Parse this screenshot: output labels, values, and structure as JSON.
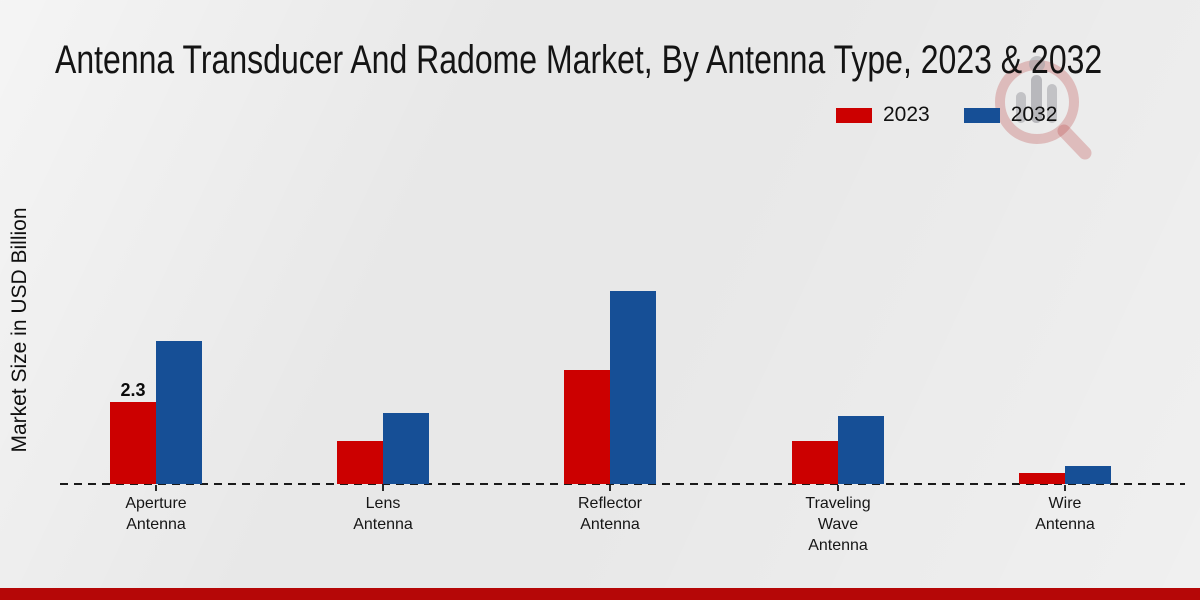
{
  "page": {
    "background_color": "#e8e8e8",
    "bottom_band_color": "#b50707",
    "watermark_name": "market-research-magnifier-logo"
  },
  "chart_data": {
    "type": "bar",
    "title": "Antenna Transducer And Radome Market, By Antenna Type, 2023 & 2032",
    "ylabel": "Market Size in USD Billion",
    "xlabel": "",
    "categories": [
      "Aperture Antenna",
      "Lens Antenna",
      "Reflector Antenna",
      "Traveling Wave Antenna",
      "Wire Antenna"
    ],
    "category_display": [
      "Aperture\nAntenna",
      "Lens\nAntenna",
      "Reflector\nAntenna",
      "Traveling\nWave\nAntenna",
      "Wire\nAntenna"
    ],
    "series": [
      {
        "name": "2023",
        "color": "#cc0000",
        "values": [
          2.3,
          1.2,
          3.2,
          1.2,
          0.3
        ]
      },
      {
        "name": "2032",
        "color": "#164f96",
        "values": [
          4.0,
          2.0,
          5.4,
          1.9,
          0.5
        ]
      }
    ],
    "data_labels": [
      {
        "series": "2023",
        "category": "Aperture Antenna",
        "text": "2.3"
      }
    ],
    "ylim": [
      0,
      5.6
    ],
    "grid": false,
    "legend_position": "top-right",
    "axis_style": "dashed-baseline-only"
  }
}
